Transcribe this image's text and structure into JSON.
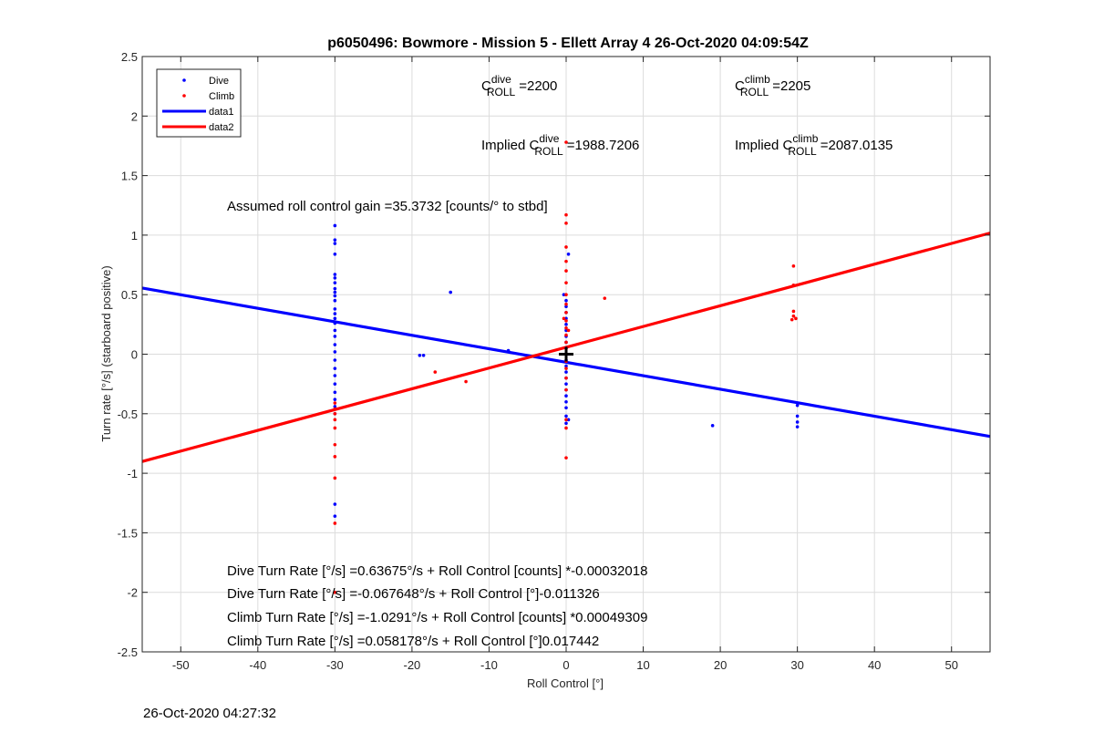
{
  "chart_data": {
    "type": "scatter",
    "title": "p6050496: Bowmore - Mission 5 - Ellett Array 4 26-Oct-2020 04:09:54Z",
    "xlabel": "Roll Control [°]",
    "ylabel": "Turn rate [°/s] (starboard positive)",
    "xlim": [
      -55,
      55
    ],
    "ylim": [
      -2.5,
      2.5
    ],
    "xticks": [
      -50,
      -40,
      -30,
      -20,
      -10,
      0,
      10,
      20,
      30,
      40,
      50
    ],
    "yticks": [
      -2.5,
      -2,
      -1.5,
      -1,
      -0.5,
      0,
      0.5,
      1,
      1.5,
      2,
      2.5
    ],
    "grid": true,
    "legend_position": "top-left",
    "series": [
      {
        "name": "Dive",
        "kind": "points",
        "color": "#0000ff",
        "points": [
          [
            -30,
            1.08
          ],
          [
            -30,
            0.96
          ],
          [
            -30,
            0.93
          ],
          [
            -30,
            0.84
          ],
          [
            -30,
            0.67
          ],
          [
            -30,
            0.64
          ],
          [
            -30,
            0.6
          ],
          [
            -30,
            0.55
          ],
          [
            -30,
            0.52
          ],
          [
            -30,
            0.49
          ],
          [
            -30,
            0.45
          ],
          [
            -30,
            0.38
          ],
          [
            -30,
            0.34
          ],
          [
            -30,
            0.3
          ],
          [
            -30,
            0.26
          ],
          [
            -30,
            0.2
          ],
          [
            -30,
            0.15
          ],
          [
            -30,
            0.08
          ],
          [
            -30,
            0.02
          ],
          [
            -30,
            -0.05
          ],
          [
            -30,
            -0.12
          ],
          [
            -30,
            -0.18
          ],
          [
            -30,
            -0.25
          ],
          [
            -30,
            -0.32
          ],
          [
            -30,
            -0.38
          ],
          [
            -30,
            -0.44
          ],
          [
            -30,
            -0.5
          ],
          [
            -30,
            -1.26
          ],
          [
            -30,
            -1.36
          ],
          [
            -19,
            -0.01
          ],
          [
            -18.5,
            -0.01
          ],
          [
            -15,
            0.52
          ],
          [
            -7.5,
            0.03
          ],
          [
            0,
            0.45
          ],
          [
            0,
            0.4
          ],
          [
            0,
            0.35
          ],
          [
            0,
            0.3
          ],
          [
            0,
            0.25
          ],
          [
            0,
            0.2
          ],
          [
            0,
            0.15
          ],
          [
            0,
            0.1
          ],
          [
            0,
            0.05
          ],
          [
            0,
            0.0
          ],
          [
            0,
            -0.05
          ],
          [
            0,
            -0.1
          ],
          [
            0,
            -0.15
          ],
          [
            0,
            -0.2
          ],
          [
            0,
            -0.25
          ],
          [
            0,
            -0.3
          ],
          [
            0,
            -0.35
          ],
          [
            0,
            -0.4
          ],
          [
            0,
            -0.45
          ],
          [
            0,
            -0.52
          ],
          [
            0,
            -0.58
          ],
          [
            0.3,
            0.84
          ],
          [
            -0.3,
            0.5
          ],
          [
            0.3,
            -0.55
          ],
          [
            19,
            -0.6
          ],
          [
            30,
            -0.43
          ],
          [
            30,
            -0.52
          ],
          [
            30,
            -0.57
          ],
          [
            30,
            -0.61
          ]
        ]
      },
      {
        "name": "Climb",
        "kind": "points",
        "color": "#ff0000",
        "points": [
          [
            -30,
            -1.42
          ],
          [
            -30,
            -1.04
          ],
          [
            -30,
            -0.86
          ],
          [
            -30,
            -0.76
          ],
          [
            -30,
            -0.62
          ],
          [
            -30,
            -0.55
          ],
          [
            -30,
            -0.5
          ],
          [
            -30,
            -0.46
          ],
          [
            -30,
            -0.41
          ],
          [
            -30,
            -2.0
          ],
          [
            -17,
            -0.15
          ],
          [
            -13,
            -0.23
          ],
          [
            0,
            1.17
          ],
          [
            0,
            1.1
          ],
          [
            0,
            0.9
          ],
          [
            0,
            0.78
          ],
          [
            0,
            0.7
          ],
          [
            0,
            0.6
          ],
          [
            0,
            0.5
          ],
          [
            0,
            0.42
          ],
          [
            0,
            0.35
          ],
          [
            0,
            0.28
          ],
          [
            0,
            0.22
          ],
          [
            0,
            0.16
          ],
          [
            0,
            0.1
          ],
          [
            0,
            0.05
          ],
          [
            0,
            0.0
          ],
          [
            0,
            -0.06
          ],
          [
            0,
            -0.12
          ],
          [
            0,
            -0.2
          ],
          [
            0,
            -0.3
          ],
          [
            0,
            -0.55
          ],
          [
            0,
            -0.62
          ],
          [
            0,
            -0.87
          ],
          [
            0,
            1.78
          ],
          [
            -0.3,
            0.3
          ],
          [
            0.3,
            0.2
          ],
          [
            5,
            0.47
          ],
          [
            29.5,
            0.74
          ],
          [
            29.5,
            0.58
          ],
          [
            29.5,
            0.36
          ],
          [
            29.5,
            0.32
          ],
          [
            29.8,
            0.3
          ],
          [
            29.3,
            0.29
          ]
        ]
      },
      {
        "name": "data1",
        "kind": "line",
        "color": "#0000ff",
        "intercept": -0.067648,
        "slope": -0.011326
      },
      {
        "name": "data2",
        "kind": "line",
        "color": "#ff0000",
        "intercept": 0.058178,
        "slope": 0.017442
      }
    ],
    "marker": {
      "x": 0,
      "y": 0,
      "symbol": "+",
      "color": "#000000"
    },
    "annotations": {
      "c_dive": {
        "base": "C",
        "sup": "dive",
        "sub": "ROLL",
        "value": "=2200"
      },
      "c_climb": {
        "base": "C",
        "sup": "climb",
        "sub": "ROLL",
        "value": "=2205"
      },
      "implied_dive": {
        "prefix": "Implied C",
        "sup": "dive",
        "sub": "ROLL",
        "value": "=1988.7206"
      },
      "implied_climb": {
        "prefix": "Implied C",
        "sup": "climb",
        "sub": "ROLL",
        "value": "=2087.0135"
      },
      "gain": "Assumed roll control gain =35.3732 [counts/° to stbd]",
      "equations": [
        "Dive Turn Rate [°/s] =0.63675°/s + Roll Control [counts] *-0.00032018",
        "Dive Turn Rate [°/s] =-0.067648°/s + Roll Control [°]-0.011326",
        "Climb Turn Rate [°/s] =-1.0291°/s + Roll Control [counts] *0.00049309",
        "Climb Turn Rate [°/s] =0.058178°/s + Roll Control [°]0.017442"
      ]
    }
  },
  "footer": {
    "timestamp": "26-Oct-2020 04:27:32"
  }
}
